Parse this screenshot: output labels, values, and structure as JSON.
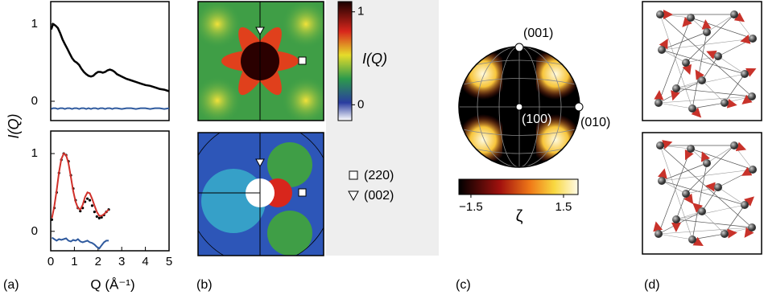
{
  "chart_data": [
    {
      "type": "line",
      "xlim": [
        0,
        5
      ],
      "ylim": [
        -0.25,
        1.29
      ],
      "yticks": [
        0,
        1
      ],
      "x": [
        0.02,
        0.1,
        0.2,
        0.3,
        0.4,
        0.5,
        0.6,
        0.7,
        0.8,
        0.9,
        1.0,
        1.1,
        1.2,
        1.3,
        1.4,
        1.5,
        1.6,
        1.7,
        1.8,
        1.9,
        2.0,
        2.1,
        2.2,
        2.3,
        2.4,
        2.5,
        2.6,
        2.7,
        2.8,
        3.0,
        3.2,
        3.4,
        3.6,
        3.8,
        4.0,
        4.2,
        4.4,
        4.6,
        4.8,
        5.0
      ],
      "series": [
        {
          "color": "#000000",
          "style": "line",
          "values": [
            0.93,
            1.0,
            0.98,
            0.95,
            0.88,
            0.8,
            0.74,
            0.68,
            0.62,
            0.56,
            0.52,
            0.5,
            0.47,
            0.42,
            0.38,
            0.35,
            0.33,
            0.32,
            0.33,
            0.36,
            0.38,
            0.38,
            0.37,
            0.38,
            0.4,
            0.41,
            0.4,
            0.38,
            0.35,
            0.32,
            0.29,
            0.27,
            0.25,
            0.23,
            0.21,
            0.2,
            0.18,
            0.16,
            0.15,
            0.13
          ]
        },
        {
          "color": "#2f5a9e",
          "style": "line",
          "values": [
            -0.1,
            -0.09,
            -0.09,
            -0.1,
            -0.09,
            -0.09,
            -0.1,
            -0.09,
            -0.09,
            -0.1,
            -0.09,
            -0.09,
            -0.1,
            -0.09,
            -0.09,
            -0.1,
            -0.09,
            -0.1,
            -0.09,
            -0.09,
            -0.1,
            -0.09,
            -0.09,
            -0.1,
            -0.09,
            -0.09,
            -0.1,
            -0.09,
            -0.09,
            -0.1,
            -0.09,
            -0.09,
            -0.1,
            -0.09,
            -0.09,
            -0.1,
            -0.09,
            -0.09,
            -0.1,
            -0.09
          ]
        }
      ],
      "ylabel": "I(Q)"
    },
    {
      "type": "line",
      "xlim": [
        0,
        5
      ],
      "ylim": [
        -0.25,
        1.29
      ],
      "xticks": [
        0,
        1,
        2,
        3,
        4,
        5
      ],
      "yticks": [
        0,
        1
      ],
      "x": [
        0.05,
        0.15,
        0.25,
        0.35,
        0.45,
        0.55,
        0.65,
        0.75,
        0.85,
        0.95,
        1.05,
        1.15,
        1.25,
        1.35,
        1.45,
        1.55,
        1.65,
        1.75,
        1.85,
        1.95,
        2.05,
        2.15,
        2.25,
        2.35,
        2.45
      ],
      "series": [
        {
          "color": "#000000",
          "style": "points",
          "values": [
            0.15,
            0.3,
            0.5,
            0.75,
            0.92,
            1.0,
            0.98,
            0.9,
            0.72,
            0.55,
            0.4,
            0.3,
            0.26,
            0.3,
            0.38,
            0.42,
            0.4,
            0.33,
            0.25,
            0.19,
            0.17,
            0.18,
            0.21,
            0.25,
            0.28
          ]
        },
        {
          "color": "#d0302a",
          "style": "line",
          "values": [
            0.17,
            0.32,
            0.52,
            0.76,
            0.93,
            1.0,
            0.98,
            0.88,
            0.7,
            0.52,
            0.38,
            0.3,
            0.28,
            0.34,
            0.44,
            0.5,
            0.49,
            0.42,
            0.33,
            0.25,
            0.2,
            0.2,
            0.22,
            0.25,
            0.28
          ]
        },
        {
          "color": "#2f5a9e",
          "style": "line",
          "values": [
            -0.08,
            -0.1,
            -0.12,
            -0.1,
            -0.11,
            -0.1,
            -0.09,
            -0.12,
            -0.13,
            -0.11,
            -0.12,
            -0.1,
            -0.13,
            -0.14,
            -0.13,
            -0.12,
            -0.14,
            -0.15,
            -0.17,
            -0.2,
            -0.22,
            -0.18,
            -0.14,
            -0.12,
            -0.12
          ]
        }
      ],
      "xlabel": "Q (Å⁻¹)"
    }
  ],
  "panel_labels": [
    "(a)",
    "(b)",
    "(c)",
    "(d)"
  ],
  "intensity_colorbar": {
    "label": "I(Q)",
    "lim": [
      -0.17,
      1.11
    ],
    "ticks": [
      0,
      1
    ]
  },
  "markers": [
    "(220)",
    "(002)"
  ],
  "projection": {
    "annotations": [
      "(001)",
      "(010)",
      "(100)"
    ],
    "colorbar": {
      "label": "ζ",
      "lim": [
        -1.89,
        1.97
      ],
      "ticks": [
        {
          "value": -1.5,
          "label": "−1.5"
        },
        1.5
      ]
    }
  }
}
